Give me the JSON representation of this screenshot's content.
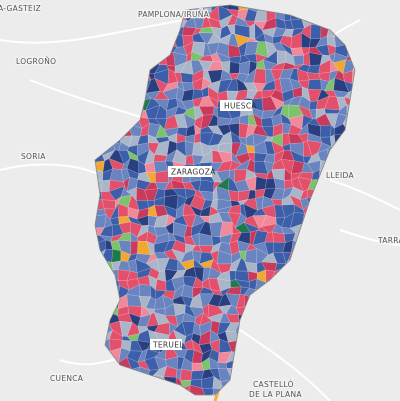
{
  "places": [
    "A-GASTEIZ",
    "PAMPLONA/IRUÑA",
    "LOGROÑO",
    "HUESCA",
    "SORIA",
    "ZARAGOZA",
    "LLEIDA",
    "TARRA",
    "TERUEL",
    "CUENCA",
    "CASTELLÓ",
    "DE LA PLANA"
  ]
}
